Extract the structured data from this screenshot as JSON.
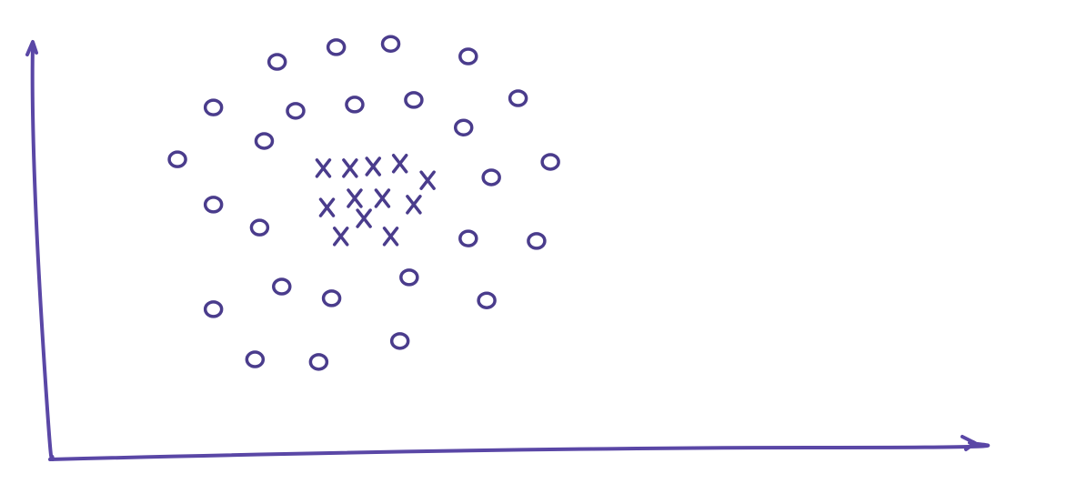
{
  "chart_data": {
    "type": "scatter",
    "xlim": [
      0,
      10
    ],
    "ylim": [
      0,
      10
    ],
    "grid": false,
    "series": [
      {
        "marker": "o",
        "color": "#4a3c8c",
        "x": [
          2.46,
          3.1,
          3.69,
          4.53,
          1.77,
          2.66,
          3.3,
          3.94,
          5.07,
          4.48,
          1.38,
          2.32,
          5.42,
          4.78,
          1.77,
          2.27,
          4.53,
          5.27,
          2.51,
          3.05,
          3.89,
          4.73,
          1.77,
          2.22,
          2.91,
          3.79
        ],
        "y": [
          9.5,
          9.85,
          9.93,
          9.63,
          8.41,
          8.33,
          8.48,
          8.59,
          8.63,
          7.93,
          7.17,
          7.61,
          7.11,
          6.74,
          6.09,
          5.54,
          5.28,
          5.22,
          4.13,
          3.85,
          4.35,
          3.8,
          3.59,
          2.39,
          2.33,
          2.83
        ]
      },
      {
        "marker": "x",
        "color": "#4a3c8c",
        "x": [
          2.96,
          3.25,
          3.5,
          3.79,
          4.09,
          3.0,
          3.3,
          3.6,
          3.94,
          3.15,
          3.4,
          3.69
        ],
        "y": [
          6.96,
          6.96,
          7.0,
          7.07,
          6.67,
          6.02,
          6.24,
          6.24,
          6.09,
          5.33,
          5.76,
          5.33
        ]
      }
    ]
  }
}
